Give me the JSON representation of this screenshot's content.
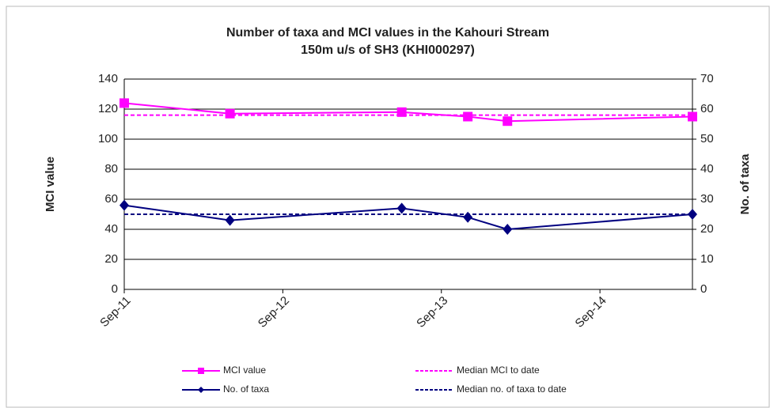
{
  "chart_data": {
    "type": "line",
    "title": [
      "Number of taxa and MCI values in the Kahouri Stream",
      "150m u/s of SH3 (KHI000297)"
    ],
    "ylabel": "MCI value",
    "y2label": "No. of taxa",
    "x": [
      "2011-09",
      "2012-05",
      "2013-06",
      "2013-11",
      "2014-02",
      "2015-04"
    ],
    "xlim": [
      "2011-09",
      "2015-04"
    ],
    "xticks": [
      {
        "value": "2011-09",
        "label": "Sep-11"
      },
      {
        "value": "2012-09",
        "label": "Sep-12"
      },
      {
        "value": "2013-09",
        "label": "Sep-13"
      },
      {
        "value": "2014-09",
        "label": "Sep-14"
      }
    ],
    "ylim": [
      0,
      140
    ],
    "yticks": [
      0,
      20,
      40,
      60,
      80,
      100,
      120,
      140
    ],
    "y2lim": [
      0,
      70
    ],
    "y2ticks": [
      0,
      10,
      20,
      30,
      40,
      50,
      60,
      70
    ],
    "grid": true,
    "series": [
      {
        "name": "MCI value",
        "color": "#ff00ff",
        "marker": "square",
        "values": [
          124,
          117,
          118,
          115,
          112,
          115
        ]
      },
      {
        "name": "No. of taxa",
        "color": "#000080",
        "marker": "diamond",
        "axis": "y2",
        "values": [
          28,
          23,
          27,
          24,
          20,
          25
        ]
      },
      {
        "name": "Median MCI to date",
        "color": "#ff00ff",
        "dash": true,
        "value": 116
      },
      {
        "name": "Median no. of taxa to date",
        "color": "#000080",
        "dash": true,
        "axis": "y2",
        "value": 25
      }
    ]
  }
}
